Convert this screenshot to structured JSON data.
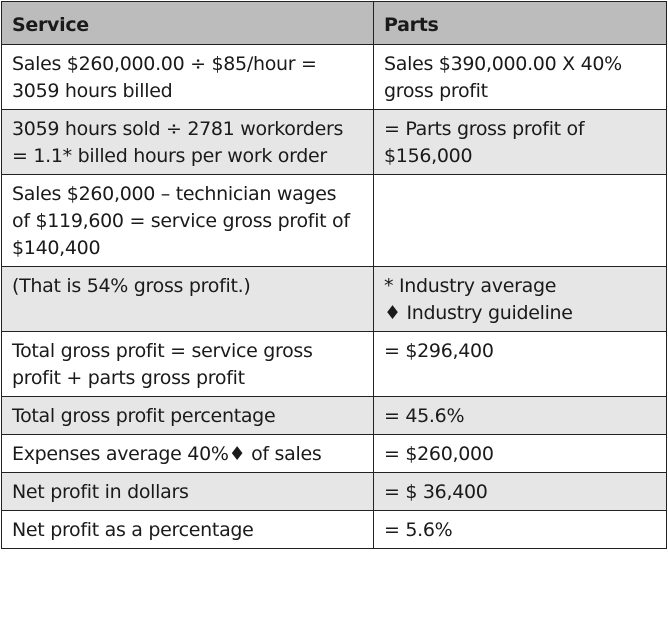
{
  "header": {
    "service": "Service",
    "parts": "Parts"
  },
  "rows": [
    {
      "service": "Sales $260,000.00 ÷ $85/hour =\n3059 hours billed",
      "parts": "Sales $390,000.00 X 40%\ngross profit"
    },
    {
      "service": "3059 hours sold ÷ 2781 workorders\n= 1.1* billed hours per work order",
      "parts": "= Parts gross profit of\n$156,000"
    },
    {
      "service": "Sales $260,000 – technician wages\nof $119,600 = service gross profit of\n$140,400",
      "parts": ""
    },
    {
      "service": "(That is 54% gross profit.)",
      "parts": "* Industry average\n♦ Industry guideline"
    },
    {
      "service": "Total gross profit = service gross\nprofit + parts gross profit",
      "parts": "= $296,400"
    },
    {
      "service": "Total gross profit percentage",
      "parts": "= 45.6%"
    },
    {
      "service": "Expenses average 40%♦ of sales",
      "parts": "= $260,000"
    },
    {
      "service": "Net profit in dollars",
      "parts": "= $ 36,400"
    },
    {
      "service": "Net profit as a percentage",
      "parts": "= 5.6%"
    }
  ]
}
